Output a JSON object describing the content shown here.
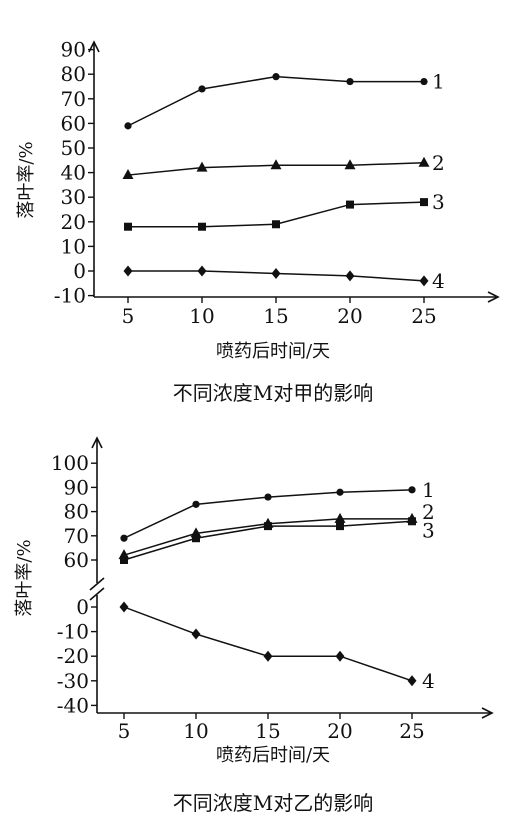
{
  "chart_data": [
    {
      "type": "line",
      "title": "不同浓度M对甲的影响",
      "xlabel": "喷药后时间/天",
      "ylabel": "落叶率/%",
      "x": [
        5,
        10,
        15,
        20,
        25
      ],
      "yticks": [
        "90",
        "80",
        "70",
        "60",
        "50",
        "40",
        "30",
        "20",
        "10",
        "0",
        "-10"
      ],
      "ylim": [
        -10,
        90
      ],
      "axis_break": false,
      "grid": false,
      "series": [
        {
          "name": "1",
          "marker": "circle",
          "values": [
            59,
            74,
            79,
            77,
            77
          ]
        },
        {
          "name": "2",
          "marker": "triangle",
          "values": [
            39,
            42,
            43,
            43,
            44
          ]
        },
        {
          "name": "3",
          "marker": "square",
          "values": [
            18,
            18,
            19,
            27,
            28
          ]
        },
        {
          "name": "4",
          "marker": "diamond",
          "values": [
            0,
            0,
            -1,
            -2,
            -4
          ]
        }
      ]
    },
    {
      "type": "line",
      "title": "不同浓度M对乙的影响",
      "xlabel": "喷药后时间/天",
      "ylabel": "落叶率/%",
      "x": [
        5,
        10,
        15,
        20,
        25
      ],
      "yticks": [
        "100",
        "90",
        "80",
        "70",
        "60",
        "0",
        "-10",
        "-20",
        "-30",
        "-40"
      ],
      "ylim": [
        -40,
        100
      ],
      "axis_break": true,
      "grid": false,
      "series": [
        {
          "name": "1",
          "marker": "circle",
          "values": [
            69,
            83,
            86,
            88,
            89
          ]
        },
        {
          "name": "2",
          "marker": "triangle",
          "values": [
            62,
            71,
            75,
            77,
            77
          ]
        },
        {
          "name": "3",
          "marker": "square",
          "values": [
            60,
            69,
            74,
            74,
            76
          ]
        },
        {
          "name": "4",
          "marker": "diamond",
          "values": [
            0,
            -11,
            -20,
            -20,
            -30
          ]
        }
      ]
    }
  ]
}
